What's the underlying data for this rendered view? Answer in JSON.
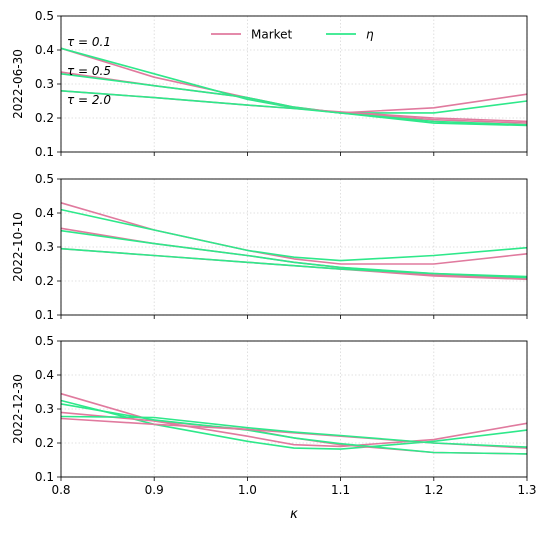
{
  "chart_data": {
    "type": "line",
    "xlabel": "κ",
    "xlim": [
      0.8,
      1.3
    ],
    "x_ticks": [
      "0.8",
      "0.9",
      "1.0",
      "1.1",
      "1.2",
      "1.3"
    ],
    "x_tick_values": [
      0.8,
      0.9,
      1.0,
      1.1,
      1.2,
      1.3
    ],
    "ylim": [
      0.1,
      0.5
    ],
    "y_ticks": [
      "0.1",
      "0.2",
      "0.3",
      "0.4",
      "0.5"
    ],
    "y_tick_values": [
      0.1,
      0.2,
      0.3,
      0.4,
      0.5
    ],
    "grid": true,
    "legend": {
      "placement": "top-center",
      "entries": [
        {
          "name": "Market",
          "color": "#e07a9e"
        },
        {
          "name": "η",
          "color": "#2ee88a"
        }
      ]
    },
    "tau_labels": [
      "τ = 0.1",
      "τ = 0.5",
      "τ = 2.0"
    ],
    "x": [
      0.8,
      0.9,
      1.0,
      1.05,
      1.1,
      1.2,
      1.3
    ],
    "panels": [
      {
        "ylabel": "2022-06-30",
        "series": [
          {
            "group": "Market",
            "values": [
              0.405,
              0.32,
              0.26,
              0.23,
              0.215,
              0.23,
              0.27
            ]
          },
          {
            "group": "η",
            "values": [
              0.405,
              0.33,
              0.255,
              0.23,
              0.215,
              0.215,
              0.25
            ]
          },
          {
            "group": "Market",
            "values": [
              0.335,
              0.295,
              0.26,
              0.232,
              0.215,
              0.195,
              0.185
            ]
          },
          {
            "group": "η",
            "values": [
              0.33,
              0.295,
              0.26,
              0.232,
              0.215,
              0.19,
              0.18
            ]
          },
          {
            "group": "Market",
            "values": [
              0.28,
              0.26,
              0.238,
              0.228,
              0.218,
              0.2,
              0.19
            ]
          },
          {
            "group": "η",
            "values": [
              0.28,
              0.26,
              0.238,
              0.228,
              0.215,
              0.185,
              0.178
            ]
          }
        ]
      },
      {
        "ylabel": "2022-10-10",
        "series": [
          {
            "group": "Market",
            "values": [
              0.43,
              0.35,
              0.29,
              0.265,
              0.25,
              0.25,
              0.28
            ]
          },
          {
            "group": "η",
            "values": [
              0.41,
              0.35,
              0.29,
              0.27,
              0.26,
              0.275,
              0.298
            ]
          },
          {
            "group": "Market",
            "values": [
              0.355,
              0.31,
              0.275,
              0.255,
              0.24,
              0.218,
              0.208
            ]
          },
          {
            "group": "η",
            "values": [
              0.348,
              0.31,
              0.275,
              0.255,
              0.24,
              0.222,
              0.213
            ]
          },
          {
            "group": "Market",
            "values": [
              0.295,
              0.275,
              0.255,
              0.245,
              0.235,
              0.215,
              0.205
            ]
          },
          {
            "group": "η",
            "values": [
              0.295,
              0.275,
              0.255,
              0.245,
              0.235,
              0.222,
              0.21
            ]
          }
        ]
      },
      {
        "ylabel": "2022-12-30",
        "series": [
          {
            "group": "Market",
            "values": [
              0.345,
              0.265,
              0.22,
              0.195,
              0.19,
              0.21,
              0.258
            ]
          },
          {
            "group": "η",
            "values": [
              0.325,
              0.255,
              0.205,
              0.185,
              0.182,
              0.205,
              0.238
            ]
          },
          {
            "group": "Market",
            "values": [
              0.29,
              0.265,
              0.24,
              0.215,
              0.195,
              0.172,
              0.168
            ]
          },
          {
            "group": "η",
            "values": [
              0.315,
              0.268,
              0.238,
              0.215,
              0.198,
              0.172,
              0.168
            ]
          },
          {
            "group": "Market",
            "values": [
              0.272,
              0.255,
              0.24,
              0.23,
              0.22,
              0.2,
              0.185
            ]
          },
          {
            "group": "η",
            "values": [
              0.278,
              0.275,
              0.245,
              0.232,
              0.222,
              0.2,
              0.188
            ]
          }
        ]
      }
    ]
  }
}
